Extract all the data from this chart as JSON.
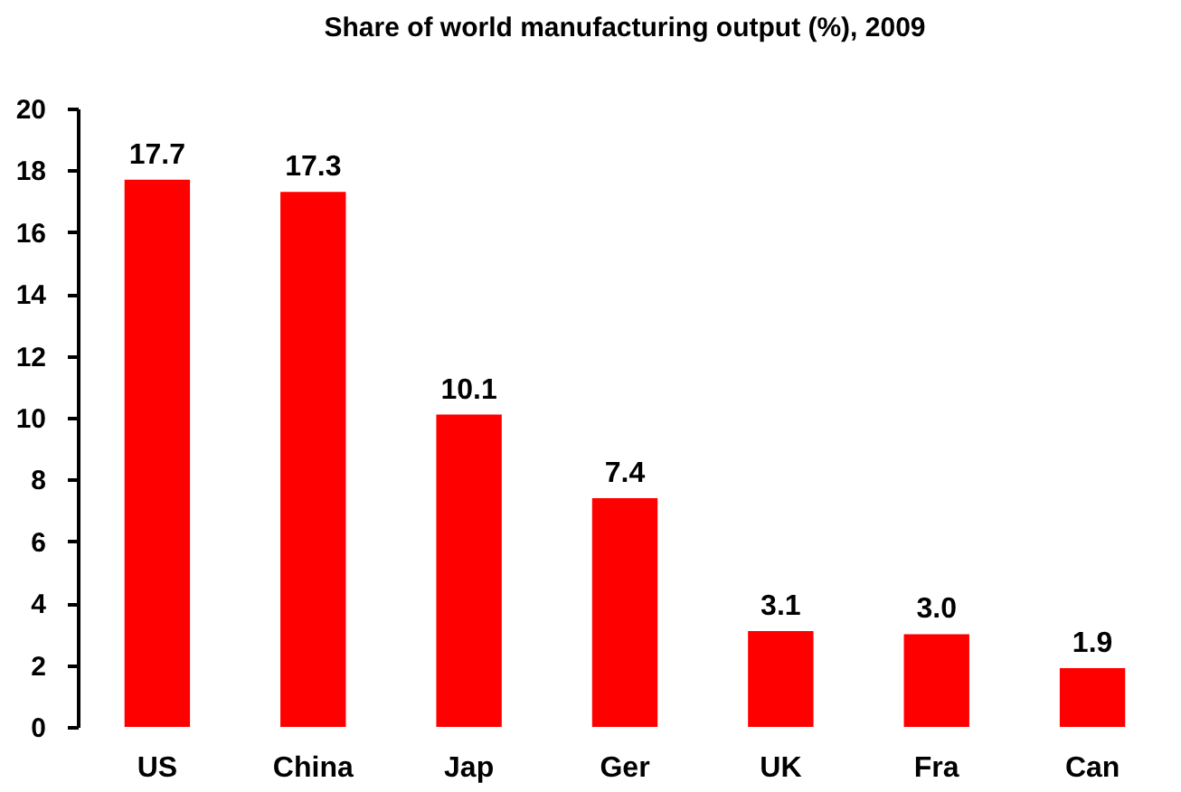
{
  "chart_data": {
    "type": "bar",
    "title": "Share of world manufacturing output (%), 2009",
    "categories": [
      "US",
      "China",
      "Jap",
      "Ger",
      "UK",
      "Fra",
      "Can"
    ],
    "values": [
      17.7,
      17.3,
      10.1,
      7.4,
      3.1,
      3.0,
      1.9
    ],
    "value_labels": [
      "17.7",
      "17.3",
      "10.1",
      "7.4",
      "3.1",
      "3.0",
      "1.9"
    ],
    "color": "#ff0000",
    "ylim": [
      0,
      20
    ],
    "yticks": [
      0,
      2,
      4,
      6,
      8,
      10,
      12,
      14,
      16,
      18,
      20
    ],
    "grid": false
  }
}
